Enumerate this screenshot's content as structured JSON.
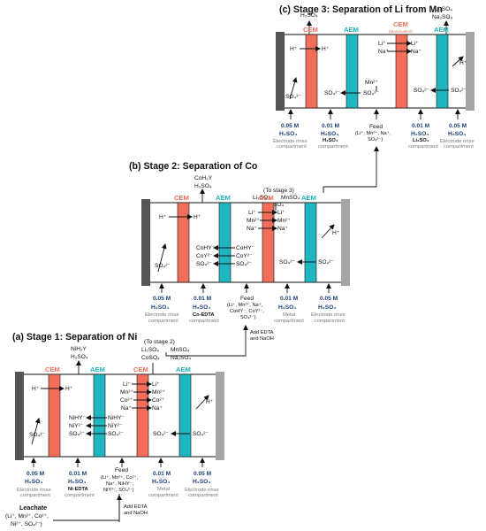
{
  "colors": {
    "cem": "#f26e5a",
    "aem": "#1fb6bf",
    "electrode_left": "#555555",
    "electrode_right": "#a7a5a3",
    "concentration": "#1f3f7a"
  },
  "stage3": {
    "title": "(c) Stage 3: Separation of Li from Mn",
    "top_h2so4": "H₂SO₄",
    "top_li": "Li₂SO₄",
    "top_na": "Na₂SO₄",
    "membranes": [
      "CEM",
      "AEM",
      "CEM",
      "AEM"
    ],
    "cem_note": "(Monovalent)",
    "ions": {
      "h1": "H⁺",
      "h2": "H⁺",
      "li": "Li⁺",
      "na": "Na⁺",
      "mn": "Mn²⁺",
      "li2": "Li⁺",
      "na2": "Na⁺",
      "h3": "H⁺",
      "so1": "SO₄²⁻",
      "so2": "SO₄²⁻",
      "so3": "SO₄²⁻",
      "so4": "SO₄²⁻",
      "so5": "SO₄²⁻",
      "so6": "SO₄²⁻"
    },
    "c1": "0.05 M",
    "c1b": "H₂SO₄",
    "c1c": "Electrode rinse",
    "c1d": "compartment",
    "c2": "0.01 M",
    "c2b": "H₂SO₄",
    "c2c": "H₂SO₄",
    "c2d": "compartment",
    "c3": "Feed",
    "c3b": "(Li⁺, Mn²⁺, Na⁺,",
    "c3c": "SO₄²⁻)",
    "c4": "0.01 M",
    "c4b": "H₂SO₄",
    "c4c": "Li₂SO₄",
    "c4d": "compartment",
    "c5": "0.05 M",
    "c5b": "H₂SO₄",
    "c5c": "Electrode rinse",
    "c5d": "compartment"
  },
  "stage2": {
    "title": "(b) Stage 2: Separation of Co",
    "top_co": "CoH₂Y",
    "top_h2so4": "H₂SO₄",
    "to_label": "(To stage 3)",
    "to_li": "Li₂SO₄",
    "to_mn": "MnSO₄",
    "to_na": "Na₂SO₄",
    "membranes": [
      "CEM",
      "AEM",
      "CEM",
      "AEM"
    ],
    "ions": {
      "h1": "H⁺",
      "h2": "H⁺",
      "li1": "Li⁺",
      "mn1": "Mn²⁺",
      "na1": "Na⁺",
      "li2": "Li⁺",
      "mn2": "Mn²⁺",
      "na2": "Na⁺",
      "h3": "H⁺",
      "cohy1": "CoHY⁻",
      "coy1": "CoY²⁻",
      "so1": "SO₄²⁻",
      "cohy2": "CoHY⁻",
      "coy2": "CoY²⁻",
      "so2": "SO₄²⁻",
      "so0": "SO₄²⁻",
      "so3": "SO₄²⁻",
      "so4": "SO₄²⁻"
    },
    "c1": "0.05 M",
    "c1b": "H₂SO₄",
    "c1c": "Electrode rinse",
    "c1d": "compartment",
    "c2": "0.01 M",
    "c2b": "H₂SO₄",
    "c2c": "Co-EDTA",
    "c2d": "compartment",
    "c3": "Feed",
    "c3b": "(Li⁺, Mn²⁺, Na⁺,",
    "c3c": "CoHY⁻, CoY²⁻,",
    "c3d": "SO₄²⁻)",
    "c4": "0.01 M",
    "c4b": "H₂SO₄",
    "c4c": "Metal",
    "c4d": "compartment",
    "c5": "0.05 M",
    "c5b": "H₂SO₄",
    "c5c": "Electrode rinse",
    "c5d": "compartment",
    "add1": "Add EDTA",
    "add2": "and NaOH"
  },
  "stage1": {
    "title": "(a) Stage 1: Separation of Ni",
    "top_ni": "NiH₂Y",
    "top_h2so4": "H₂SO₄",
    "to_label": "(To stage 2)",
    "to_li": "Li₂SO₄",
    "to_mn": "MnSO₄",
    "to_co": "CoSO₄",
    "to_na": "Na₂SO₄",
    "membranes": [
      "CEM",
      "AEM",
      "CEM",
      "AEM"
    ],
    "ions": {
      "h1": "H⁺",
      "h2": "H⁺",
      "li1": "Li⁺",
      "mn1": "Mn²⁺",
      "co1": "Co²⁺",
      "na1": "Na⁺",
      "li2": "Li⁺",
      "mn2": "Mn²⁺",
      "co2": "Co²⁺",
      "na2": "Na⁺",
      "h3": "H⁺",
      "nihy1": "NiHY⁻",
      "niy1": "NiY²⁻",
      "so1": "SO₄²⁻",
      "nihy2": "NiHY⁻",
      "niy2": "NiY²⁻",
      "so2": "SO₄²⁻",
      "so0": "SO₄²⁻",
      "so3": "SO₄²⁻",
      "so4": "SO₄²⁻"
    },
    "c1": "0.05 M",
    "c1b": "H₂SO₄",
    "c1c": "Electrode rinse",
    "c1d": "compartment",
    "c2": "0.01 M",
    "c2b": "H₂SO₄",
    "c2c": "Ni-EDTA",
    "c2d": "compartment",
    "c3": "Feed",
    "c3b": "(Li⁺, Mn²⁺, Co²⁺,",
    "c3c": "Na⁺, NiHY⁻,",
    "c3d": "NiY²⁻, SO₄²⁻)",
    "c4": "0.01 M",
    "c4b": "H₂SO₄",
    "c4c": "Metal",
    "c4d": "compartment",
    "c5": "0.05 M",
    "c5b": "H₂SO₄",
    "c5c": "Electrode rinse",
    "c5d": "compartment",
    "add1": "Add EDTA",
    "add2": "and NaOH",
    "leachate": "Leachate",
    "leach1": "(Li⁺, Mn²⁺, Co²⁺,",
    "leach2": "Ni²⁺, SO₄²⁻)"
  }
}
